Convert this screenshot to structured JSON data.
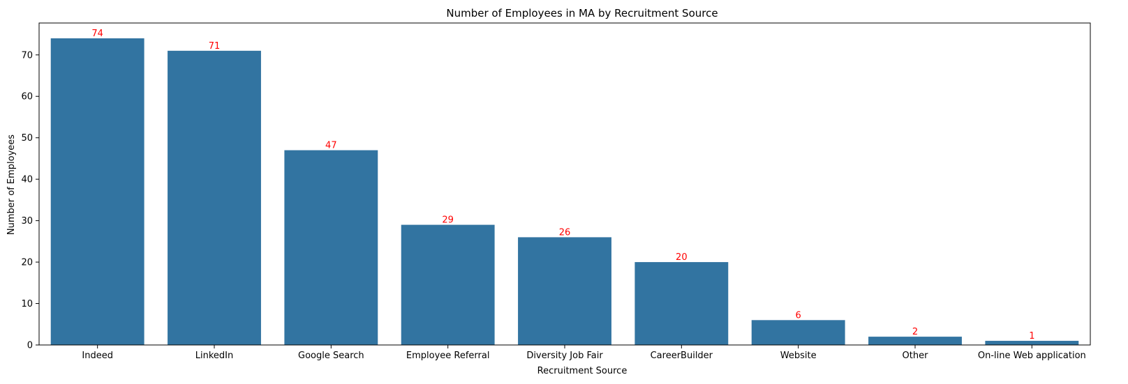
{
  "chart_data": {
    "type": "bar",
    "title": "Number of Employees in MA by Recruitment Source",
    "xlabel": "Recruitment Source",
    "ylabel": "Number of Employees",
    "categories": [
      "Indeed",
      "LinkedIn",
      "Google Search",
      "Employee Referral",
      "Diversity Job Fair",
      "CareerBuilder",
      "Website",
      "Other",
      "On-line Web application"
    ],
    "values": [
      74,
      71,
      47,
      29,
      26,
      20,
      6,
      2,
      1
    ],
    "data_labels": [
      "74",
      "71",
      "47",
      "29",
      "26",
      "20",
      "6",
      "2",
      "1"
    ],
    "ylim": [
      0,
      77.7
    ],
    "yticks": [
      0,
      10,
      20,
      30,
      40,
      50,
      60,
      70
    ],
    "grid": false,
    "legend": "none",
    "colors": {
      "bar": "#3274a1",
      "data_label": "#ff0000",
      "axis": "#000000",
      "text": "#000000"
    }
  }
}
